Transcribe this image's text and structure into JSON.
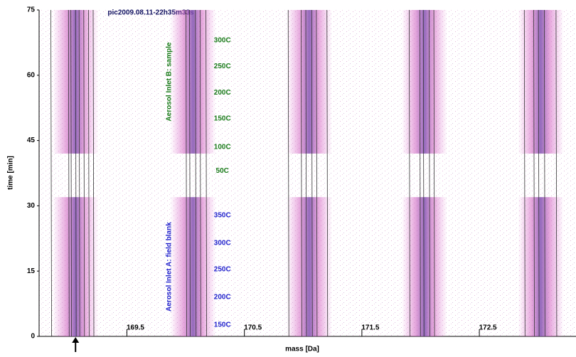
{
  "chart_data": {
    "type": "spectrogram",
    "title": "pic2009.08.11-22h35m33s",
    "x_label": "mass [Da]",
    "y_label": "time [min]",
    "xlim": [
      168.68,
      173.25
    ],
    "ylim": [
      0,
      75
    ],
    "yticks": [
      0,
      15,
      30,
      45,
      60,
      75
    ],
    "xticks": [
      169.5,
      170.5,
      171.5,
      172.5
    ],
    "peak_masses": [
      168.99,
      169.99,
      170.98,
      171.96,
      172.95
    ],
    "marker_lines": [
      168.78,
      168.93,
      168.95,
      168.99,
      169.02,
      169.06,
      169.1,
      169.14,
      169.93,
      169.96,
      170.01,
      170.05,
      170.1,
      170.8,
      170.91,
      170.95,
      171.0,
      171.04,
      171.13,
      171.83,
      171.92,
      171.95,
      172.0,
      172.04,
      172.81,
      172.89,
      172.93,
      172.98,
      173.08
    ],
    "arrow_mass": 168.99,
    "regions": [
      {
        "name": "Aerosol Inlet B: sample",
        "color": "#1a7a1a",
        "time_range": [
          42,
          75
        ],
        "label_mass": 170.24,
        "steps": [
          {
            "label": "300C",
            "time": 68
          },
          {
            "label": "250C",
            "time": 62
          },
          {
            "label": "200C",
            "time": 56
          },
          {
            "label": "150C",
            "time": 50
          },
          {
            "label": "100C",
            "time": 43.5
          },
          {
            "label": "50C",
            "time": 38
          }
        ]
      },
      {
        "name": "Aerosol Inlet A: field blank",
        "color": "#2222cc",
        "time_range": [
          0,
          32
        ],
        "label_mass": 170.24,
        "steps": [
          {
            "label": "350C",
            "time": 27.8
          },
          {
            "label": "300C",
            "time": 21.4
          },
          {
            "label": "250C",
            "time": 15.4
          },
          {
            "label": "200C",
            "time": 9
          },
          {
            "label": "150C",
            "time": 2.6
          }
        ]
      }
    ]
  }
}
